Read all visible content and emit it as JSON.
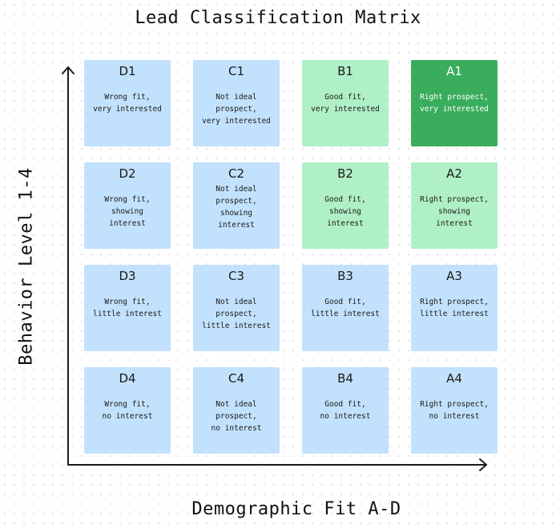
{
  "title": "Lead Classification Matrix",
  "y_axis_label": "Behavior Level 1-4",
  "x_axis_label": "Demographic Fit A-D",
  "colors": {
    "blue": "#c2e1fc",
    "light_green": "#b0f0c6",
    "dark_green": "#3aad5c"
  },
  "rows": [
    [
      {
        "code": "D1",
        "desc": "Wrong fit,\nvery interested",
        "color": "blue"
      },
      {
        "code": "C1",
        "desc": "Not ideal\nprospect,\nvery interested",
        "color": "blue"
      },
      {
        "code": "B1",
        "desc": "Good fit,\nvery interested",
        "color": "light_green"
      },
      {
        "code": "A1",
        "desc": "Right prospect,\nvery interested",
        "color": "dark_green"
      }
    ],
    [
      {
        "code": "D2",
        "desc": "Wrong fit,\nshowing\ninterest",
        "color": "blue"
      },
      {
        "code": "C2",
        "desc": "Not ideal\nprospect,\nshowing\ninterest",
        "color": "blue"
      },
      {
        "code": "B2",
        "desc": "Good fit,\nshowing\ninterest",
        "color": "light_green"
      },
      {
        "code": "A2",
        "desc": "Right prospect,\nshowing\ninterest",
        "color": "light_green"
      }
    ],
    [
      {
        "code": "D3",
        "desc": "Wrong fit,\nlittle interest",
        "color": "blue"
      },
      {
        "code": "C3",
        "desc": "Not ideal\nprospect,\nlittle interest",
        "color": "blue"
      },
      {
        "code": "B3",
        "desc": "Good fit,\nlittle interest",
        "color": "blue"
      },
      {
        "code": "A3",
        "desc": "Right prospect,\nlittle interest",
        "color": "blue"
      }
    ],
    [
      {
        "code": "D4",
        "desc": "Wrong fit,\nno interest",
        "color": "blue"
      },
      {
        "code": "C4",
        "desc": "Not ideal\nprospect,\nno interest",
        "color": "blue"
      },
      {
        "code": "B4",
        "desc": "Good fit,\nno interest",
        "color": "blue"
      },
      {
        "code": "A4",
        "desc": "Right prospect,\nno interest",
        "color": "blue"
      }
    ]
  ]
}
